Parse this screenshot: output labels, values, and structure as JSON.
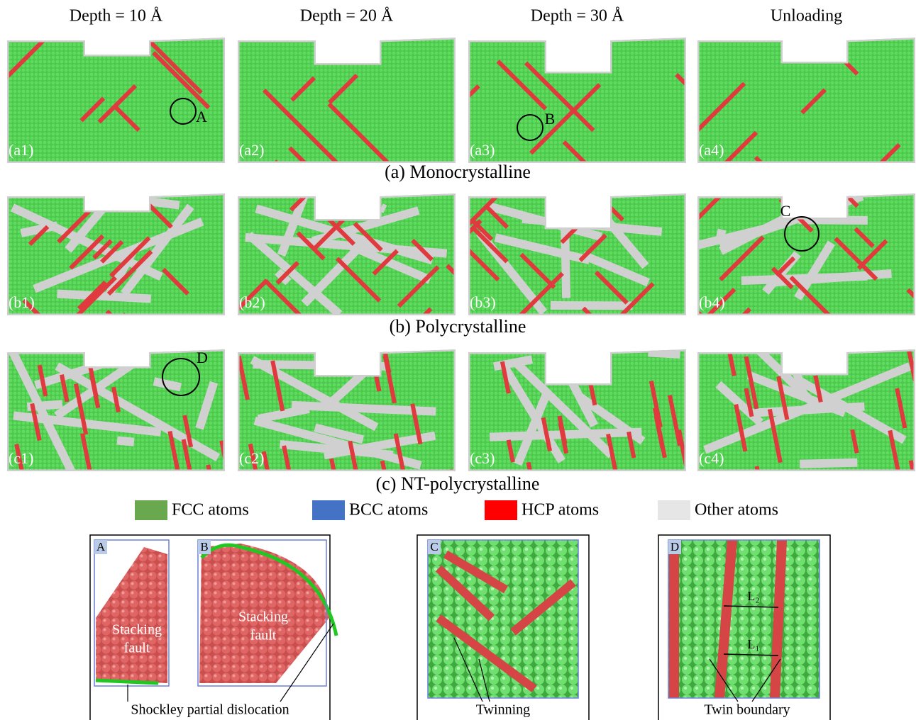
{
  "columns": [
    "Depth = 10 Å",
    "Depth = 20 Å",
    "Depth = 30 Å",
    "Unloading"
  ],
  "rows": [
    {
      "caption": "(a) Monocrystalline",
      "panels": [
        "(a1)",
        "(a2)",
        "(a3)",
        "(a4)"
      ]
    },
    {
      "caption": "(b) Polycrystalline",
      "panels": [
        "(b1)",
        "(b2)",
        "(b3)",
        "(b4)"
      ]
    },
    {
      "caption": "(c) NT-polycrystalline",
      "panels": [
        "(c1)",
        "(c2)",
        "(c3)",
        "(c4)"
      ]
    }
  ],
  "markers": [
    "A",
    "B",
    "C",
    "D"
  ],
  "legend": [
    {
      "label": "FCC atoms",
      "color": "#6aa84f"
    },
    {
      "label": "BCC atoms",
      "color": "#4472c4"
    },
    {
      "label": "HCP atoms",
      "color": "#ff0000"
    },
    {
      "label": "Other atoms",
      "color": "#e6e6e6"
    }
  ],
  "insets": [
    {
      "panels": [
        {
          "label": "A",
          "text": [
            "Stacking",
            "fault"
          ]
        },
        {
          "label": "B",
          "text": [
            "Stacking",
            "fault"
          ]
        }
      ],
      "caption": "Shockley partial dislocation"
    },
    {
      "panels": [
        {
          "label": "C"
        }
      ],
      "caption": "Twinning"
    },
    {
      "panels": [
        {
          "label": "D",
          "notes": [
            "L₂",
            "L₁"
          ]
        }
      ],
      "caption": "Twin boundary"
    }
  ]
}
